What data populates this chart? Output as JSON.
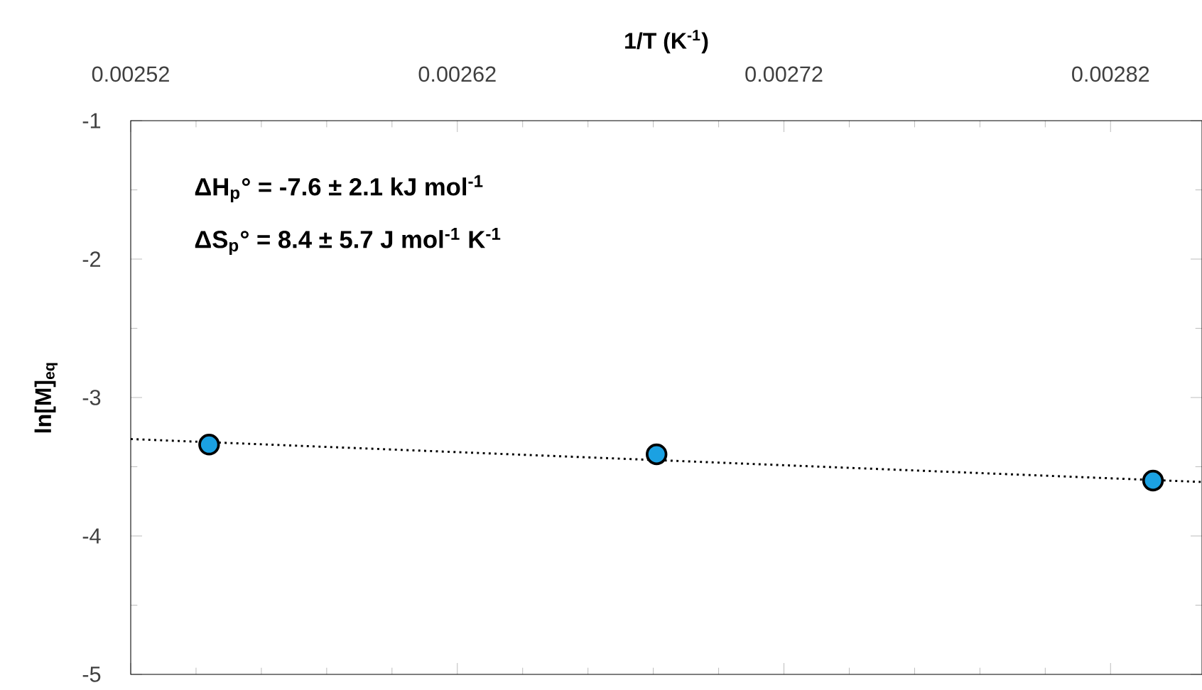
{
  "chart_data": {
    "type": "line",
    "xlabel": "1/T (K$^{-1}$)",
    "ylabel": "ln[M]$_{eq}$",
    "annotations": [
      "ΔH$_{p}$° = -7.6 ± 2.1 kJ mol$^{-1}$",
      "ΔS$_{p}$° = 8.4 ± 5.7 J mol$^{-1}$ K$^{-1}$"
    ],
    "xlim": [
      0.00252,
      0.002848
    ],
    "xticks": [
      {
        "value": 0.00252,
        "label": "0.00252"
      },
      {
        "value": 0.00262,
        "label": "0.00262"
      },
      {
        "value": 0.00272,
        "label": "0.00272"
      },
      {
        "value": 0.00282,
        "label": "0.00282"
      }
    ],
    "ylim": [
      -5,
      -1
    ],
    "yticks": [
      -5,
      -4,
      -3,
      -2,
      -1
    ],
    "grid": false,
    "series": [
      {
        "type": "scatter",
        "marker": "circle",
        "color": "#1ba1e2",
        "x": [
          0.002544,
          0.002681,
          0.002833
        ],
        "values": [
          -3.34,
          -3.41,
          -3.6
        ]
      },
      {
        "color": "#000000",
        "line_style": "dotted",
        "marker": "none",
        "x": [
          0.00252,
          0.002848
        ],
        "values": [
          -3.3,
          -3.61
        ]
      }
    ]
  }
}
